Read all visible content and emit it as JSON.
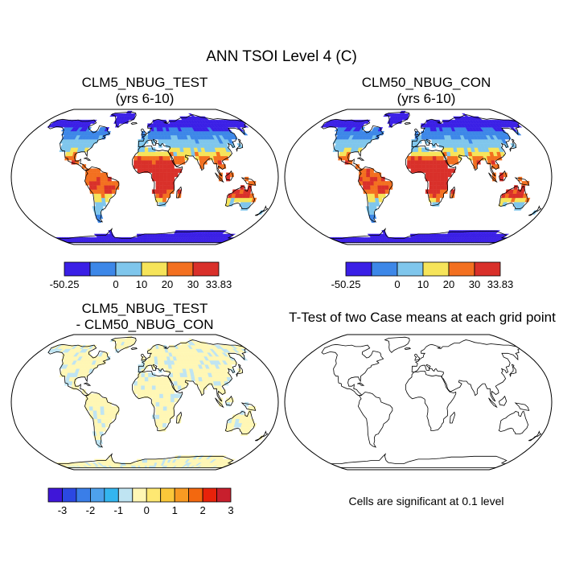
{
  "figure_title": "ANN TSOI Level 4 (C)",
  "panels": [
    {
      "id": "test",
      "title_line1": "CLM5_NBUG_TEST",
      "title_line2": "(yrs 6-10)"
    },
    {
      "id": "control",
      "title_line1": "CLM50_NBUG_CON",
      "title_line2": "(yrs 6-10)"
    },
    {
      "id": "difference",
      "title_line1": "CLM5_NBUG_TEST",
      "title_line2": "- CLM50_NBUG_CON"
    },
    {
      "id": "ttest",
      "title_line1": "T-Test of two Case means at each grid point",
      "title_line2": ""
    }
  ],
  "footnote": "Cells are significant at 0.1 level",
  "chart_data": [
    {
      "type": "map",
      "panel": "test",
      "projection": "robinson",
      "colorbar": {
        "colors": [
          "#3a1fe6",
          "#3d87e8",
          "#7fc6ec",
          "#f6e45a",
          "#f37020",
          "#d9302a"
        ],
        "tick_labels": [
          "-50.25",
          "0",
          "10",
          "20",
          "30",
          "33.83"
        ]
      }
    },
    {
      "type": "map",
      "panel": "control",
      "projection": "robinson",
      "colorbar": {
        "colors": [
          "#3a1fe6",
          "#3d87e8",
          "#7fc6ec",
          "#f6e45a",
          "#f37020",
          "#d9302a"
        ],
        "tick_labels": [
          "-50.25",
          "0",
          "10",
          "20",
          "30",
          "33.83"
        ]
      }
    },
    {
      "type": "map",
      "panel": "difference",
      "projection": "robinson",
      "colorbar": {
        "colors": [
          "#3f16d8",
          "#2b48e2",
          "#3a7ee8",
          "#4ea1ec",
          "#33b5ef",
          "#bfe4f2",
          "#fff7b5",
          "#fee872",
          "#fbc83a",
          "#f89a22",
          "#f3680f",
          "#e8220a",
          "#c81f2d"
        ],
        "tick_labels": [
          "-3",
          "-2",
          "-1",
          "0",
          "1",
          "2",
          "3"
        ]
      }
    },
    {
      "type": "map",
      "panel": "ttest",
      "projection": "robinson",
      "colorbar": null
    }
  ]
}
